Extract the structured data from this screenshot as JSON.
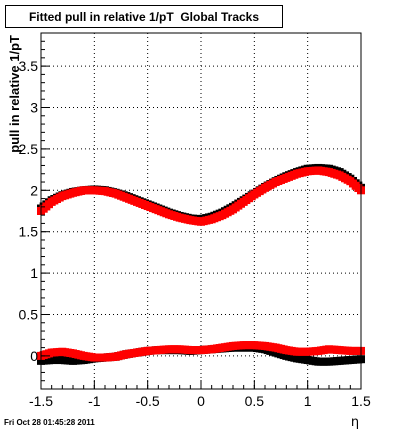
{
  "chart_data": {
    "type": "scatter",
    "title": "Fitted pull in relative 1/pT  Global Tracks",
    "xlabel": "η",
    "ylabel": "pull in relative 1/pT",
    "xlim": [
      -1.5,
      1.5
    ],
    "ylim": [
      -0.4,
      3.9
    ],
    "xticks": [
      "-1.5",
      "-1",
      "-0.5",
      "0",
      "0.5",
      "1",
      "1.5"
    ],
    "yticks": [
      "0",
      "0.5",
      "1",
      "1.5",
      "2",
      "2.5",
      "3",
      "3.5"
    ],
    "grid": true,
    "series": [
      {
        "color": "#000000",
        "x": [
          -1.5,
          -1.4,
          -1.3,
          -1.2,
          -1.1,
          -1.0,
          -0.9,
          -0.8,
          -0.7,
          -0.6,
          -0.5,
          -0.4,
          -0.3,
          -0.2,
          -0.1,
          0.0,
          0.1,
          0.2,
          0.3,
          0.4,
          0.5,
          0.6,
          0.7,
          0.8,
          0.9,
          1.0,
          1.1,
          1.2,
          1.3,
          1.4,
          1.5
        ],
        "y": [
          1.78,
          1.88,
          1.94,
          1.98,
          2.0,
          2.01,
          2.0,
          1.97,
          1.93,
          1.88,
          1.83,
          1.78,
          1.73,
          1.69,
          1.66,
          1.65,
          1.68,
          1.73,
          1.8,
          1.88,
          1.96,
          2.04,
          2.11,
          2.17,
          2.22,
          2.26,
          2.27,
          2.26,
          2.22,
          2.14,
          2.03
        ]
      },
      {
        "color": "#ff0000",
        "x": [
          -1.5,
          -1.4,
          -1.3,
          -1.2,
          -1.1,
          -1.0,
          -0.9,
          -0.8,
          -0.7,
          -0.6,
          -0.5,
          -0.4,
          -0.3,
          -0.2,
          -0.1,
          0.0,
          0.1,
          0.2,
          0.3,
          0.4,
          0.5,
          0.6,
          0.7,
          0.8,
          0.9,
          1.0,
          1.1,
          1.2,
          1.3,
          1.4,
          1.5
        ],
        "y": [
          1.75,
          1.86,
          1.93,
          1.97,
          2.0,
          2.0,
          1.99,
          1.96,
          1.91,
          1.86,
          1.81,
          1.76,
          1.71,
          1.67,
          1.64,
          1.62,
          1.65,
          1.7,
          1.77,
          1.86,
          1.95,
          2.03,
          2.1,
          2.15,
          2.2,
          2.23,
          2.24,
          2.22,
          2.18,
          2.11,
          2.0
        ]
      },
      {
        "color": "#000000",
        "x": [
          -1.5,
          -1.4,
          -1.3,
          -1.2,
          -1.1,
          -1.0,
          -0.9,
          -0.8,
          -0.7,
          -0.6,
          -0.5,
          -0.4,
          -0.3,
          -0.2,
          -0.1,
          0.0,
          0.1,
          0.2,
          0.3,
          0.4,
          0.5,
          0.6,
          0.7,
          0.8,
          0.9,
          1.0,
          1.1,
          1.2,
          1.3,
          1.4,
          1.5
        ],
        "y": [
          -0.06,
          -0.05,
          -0.05,
          -0.06,
          -0.05,
          -0.03,
          -0.02,
          -0.01,
          0.02,
          0.04,
          0.06,
          0.07,
          0.07,
          0.07,
          0.06,
          0.07,
          0.08,
          0.09,
          0.1,
          0.1,
          0.1,
          0.08,
          0.04,
          0.0,
          -0.03,
          -0.05,
          -0.07,
          -0.07,
          -0.06,
          -0.05,
          -0.04
        ]
      },
      {
        "color": "#ff0000",
        "x": [
          -1.5,
          -1.4,
          -1.3,
          -1.2,
          -1.1,
          -1.0,
          -0.9,
          -0.8,
          -0.7,
          -0.6,
          -0.5,
          -0.4,
          -0.3,
          -0.2,
          -0.1,
          0.0,
          0.1,
          0.2,
          0.3,
          0.4,
          0.5,
          0.6,
          0.7,
          0.8,
          0.9,
          1.0,
          1.1,
          1.2,
          1.3,
          1.4,
          1.5
        ],
        "y": [
          0.0,
          0.04,
          0.05,
          0.03,
          0.0,
          -0.02,
          -0.02,
          -0.01,
          0.02,
          0.04,
          0.06,
          0.07,
          0.08,
          0.08,
          0.07,
          0.07,
          0.08,
          0.1,
          0.12,
          0.13,
          0.13,
          0.12,
          0.1,
          0.07,
          0.05,
          0.05,
          0.06,
          0.08,
          0.07,
          0.06,
          0.06
        ]
      }
    ]
  },
  "footer": {
    "timestamp": "Fri Oct 28 01:45:28 2011"
  }
}
